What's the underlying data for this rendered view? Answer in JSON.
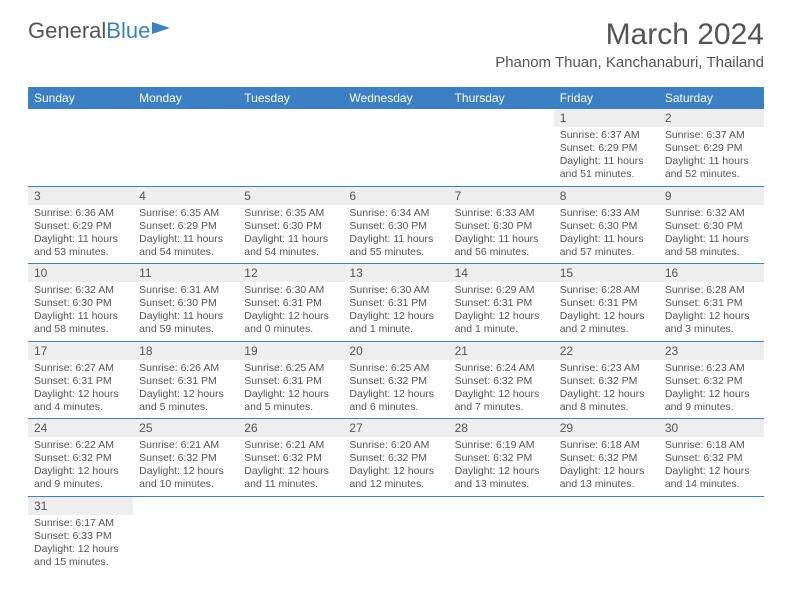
{
  "logo": {
    "textA": "General",
    "textB": "Blue"
  },
  "title": "March 2024",
  "location": "Phanom Thuan, Kanchanaburi, Thailand",
  "headers": [
    "Sunday",
    "Monday",
    "Tuesday",
    "Wednesday",
    "Thursday",
    "Friday",
    "Saturday"
  ],
  "colors": {
    "headerBg": "#3b7fc4",
    "headerText": "#ffffff",
    "dayNumBg": "#eeeeee",
    "bodyText": "#555555",
    "borderColor": "#3b7fc4"
  },
  "weeks": [
    [
      null,
      null,
      null,
      null,
      null,
      {
        "d": "1",
        "sr": "Sunrise: 6:37 AM",
        "ss": "Sunset: 6:29 PM",
        "dl": "Daylight: 11 hours and 51 minutes."
      },
      {
        "d": "2",
        "sr": "Sunrise: 6:37 AM",
        "ss": "Sunset: 6:29 PM",
        "dl": "Daylight: 11 hours and 52 minutes."
      }
    ],
    [
      {
        "d": "3",
        "sr": "Sunrise: 6:36 AM",
        "ss": "Sunset: 6:29 PM",
        "dl": "Daylight: 11 hours and 53 minutes."
      },
      {
        "d": "4",
        "sr": "Sunrise: 6:35 AM",
        "ss": "Sunset: 6:29 PM",
        "dl": "Daylight: 11 hours and 54 minutes."
      },
      {
        "d": "5",
        "sr": "Sunrise: 6:35 AM",
        "ss": "Sunset: 6:30 PM",
        "dl": "Daylight: 11 hours and 54 minutes."
      },
      {
        "d": "6",
        "sr": "Sunrise: 6:34 AM",
        "ss": "Sunset: 6:30 PM",
        "dl": "Daylight: 11 hours and 55 minutes."
      },
      {
        "d": "7",
        "sr": "Sunrise: 6:33 AM",
        "ss": "Sunset: 6:30 PM",
        "dl": "Daylight: 11 hours and 56 minutes."
      },
      {
        "d": "8",
        "sr": "Sunrise: 6:33 AM",
        "ss": "Sunset: 6:30 PM",
        "dl": "Daylight: 11 hours and 57 minutes."
      },
      {
        "d": "9",
        "sr": "Sunrise: 6:32 AM",
        "ss": "Sunset: 6:30 PM",
        "dl": "Daylight: 11 hours and 58 minutes."
      }
    ],
    [
      {
        "d": "10",
        "sr": "Sunrise: 6:32 AM",
        "ss": "Sunset: 6:30 PM",
        "dl": "Daylight: 11 hours and 58 minutes."
      },
      {
        "d": "11",
        "sr": "Sunrise: 6:31 AM",
        "ss": "Sunset: 6:30 PM",
        "dl": "Daylight: 11 hours and 59 minutes."
      },
      {
        "d": "12",
        "sr": "Sunrise: 6:30 AM",
        "ss": "Sunset: 6:31 PM",
        "dl": "Daylight: 12 hours and 0 minutes."
      },
      {
        "d": "13",
        "sr": "Sunrise: 6:30 AM",
        "ss": "Sunset: 6:31 PM",
        "dl": "Daylight: 12 hours and 1 minute."
      },
      {
        "d": "14",
        "sr": "Sunrise: 6:29 AM",
        "ss": "Sunset: 6:31 PM",
        "dl": "Daylight: 12 hours and 1 minute."
      },
      {
        "d": "15",
        "sr": "Sunrise: 6:28 AM",
        "ss": "Sunset: 6:31 PM",
        "dl": "Daylight: 12 hours and 2 minutes."
      },
      {
        "d": "16",
        "sr": "Sunrise: 6:28 AM",
        "ss": "Sunset: 6:31 PM",
        "dl": "Daylight: 12 hours and 3 minutes."
      }
    ],
    [
      {
        "d": "17",
        "sr": "Sunrise: 6:27 AM",
        "ss": "Sunset: 6:31 PM",
        "dl": "Daylight: 12 hours and 4 minutes."
      },
      {
        "d": "18",
        "sr": "Sunrise: 6:26 AM",
        "ss": "Sunset: 6:31 PM",
        "dl": "Daylight: 12 hours and 5 minutes."
      },
      {
        "d": "19",
        "sr": "Sunrise: 6:25 AM",
        "ss": "Sunset: 6:31 PM",
        "dl": "Daylight: 12 hours and 5 minutes."
      },
      {
        "d": "20",
        "sr": "Sunrise: 6:25 AM",
        "ss": "Sunset: 6:32 PM",
        "dl": "Daylight: 12 hours and 6 minutes."
      },
      {
        "d": "21",
        "sr": "Sunrise: 6:24 AM",
        "ss": "Sunset: 6:32 PM",
        "dl": "Daylight: 12 hours and 7 minutes."
      },
      {
        "d": "22",
        "sr": "Sunrise: 6:23 AM",
        "ss": "Sunset: 6:32 PM",
        "dl": "Daylight: 12 hours and 8 minutes."
      },
      {
        "d": "23",
        "sr": "Sunrise: 6:23 AM",
        "ss": "Sunset: 6:32 PM",
        "dl": "Daylight: 12 hours and 9 minutes."
      }
    ],
    [
      {
        "d": "24",
        "sr": "Sunrise: 6:22 AM",
        "ss": "Sunset: 6:32 PM",
        "dl": "Daylight: 12 hours and 9 minutes."
      },
      {
        "d": "25",
        "sr": "Sunrise: 6:21 AM",
        "ss": "Sunset: 6:32 PM",
        "dl": "Daylight: 12 hours and 10 minutes."
      },
      {
        "d": "26",
        "sr": "Sunrise: 6:21 AM",
        "ss": "Sunset: 6:32 PM",
        "dl": "Daylight: 12 hours and 11 minutes."
      },
      {
        "d": "27",
        "sr": "Sunrise: 6:20 AM",
        "ss": "Sunset: 6:32 PM",
        "dl": "Daylight: 12 hours and 12 minutes."
      },
      {
        "d": "28",
        "sr": "Sunrise: 6:19 AM",
        "ss": "Sunset: 6:32 PM",
        "dl": "Daylight: 12 hours and 13 minutes."
      },
      {
        "d": "29",
        "sr": "Sunrise: 6:18 AM",
        "ss": "Sunset: 6:32 PM",
        "dl": "Daylight: 12 hours and 13 minutes."
      },
      {
        "d": "30",
        "sr": "Sunrise: 6:18 AM",
        "ss": "Sunset: 6:32 PM",
        "dl": "Daylight: 12 hours and 14 minutes."
      }
    ],
    [
      {
        "d": "31",
        "sr": "Sunrise: 6:17 AM",
        "ss": "Sunset: 6:33 PM",
        "dl": "Daylight: 12 hours and 15 minutes."
      },
      null,
      null,
      null,
      null,
      null,
      null
    ]
  ]
}
